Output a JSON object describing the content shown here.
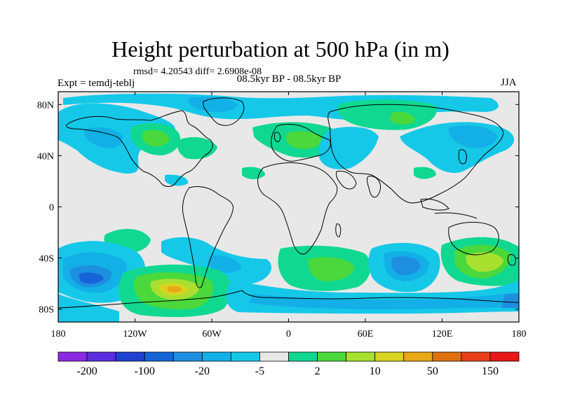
{
  "header": {
    "title": "Height perturbation at 500 hPa (in m)",
    "stats": "rmsd= 4.20543 diff= 2.6908e-08",
    "expt": "Expt = temdj-teblj",
    "period": "08.5kyr BP - 08.5kyr BP",
    "season": "JJA"
  },
  "map": {
    "lat_labels": [
      "80N",
      "40N",
      "0",
      "40S",
      "80S"
    ],
    "lon_labels": [
      "180",
      "120W",
      "60W",
      "0",
      "60E",
      "120E",
      "180"
    ]
  },
  "colorbar": {
    "colors": [
      "#8a2be2",
      "#5a2ee0",
      "#2040d0",
      "#1565d8",
      "#1e8fe0",
      "#12b0e6",
      "#16c8e8",
      "#e8e8e8",
      "#10d890",
      "#4ad83c",
      "#a8e030",
      "#d8d420",
      "#e8a818",
      "#e07010",
      "#e84018",
      "#e81818"
    ],
    "labels": [
      "-200",
      "-100",
      "-20",
      "-5",
      "2",
      "10",
      "50",
      "150"
    ]
  },
  "colors": {
    "background": "#e8e8e8"
  }
}
